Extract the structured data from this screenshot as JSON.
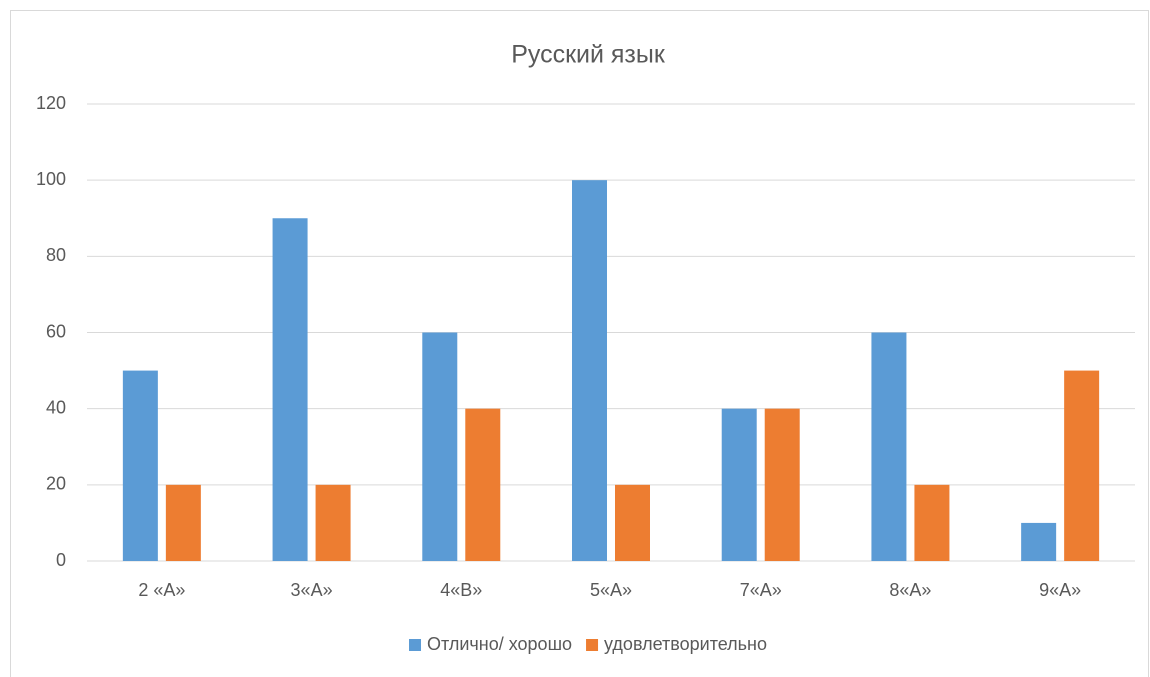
{
  "chart_data": {
    "type": "bar",
    "title": "Русский язык",
    "categories": [
      "2 «А»",
      "3«А»",
      "4«В»",
      "5«А»",
      "7«А»",
      "8«А»",
      "9«А»"
    ],
    "series": [
      {
        "name": "Отлично/ хорошо",
        "color": "#5b9bd5",
        "values": [
          50,
          90,
          60,
          100,
          40,
          60,
          10
        ]
      },
      {
        "name": "удовлетворительно",
        "color": "#ed7d31",
        "values": [
          20,
          20,
          40,
          20,
          40,
          20,
          50
        ]
      }
    ],
    "ylim": [
      0,
      120
    ],
    "yticks": [
      0,
      20,
      40,
      60,
      80,
      100,
      120
    ],
    "grid": true,
    "legend": "bottom"
  }
}
